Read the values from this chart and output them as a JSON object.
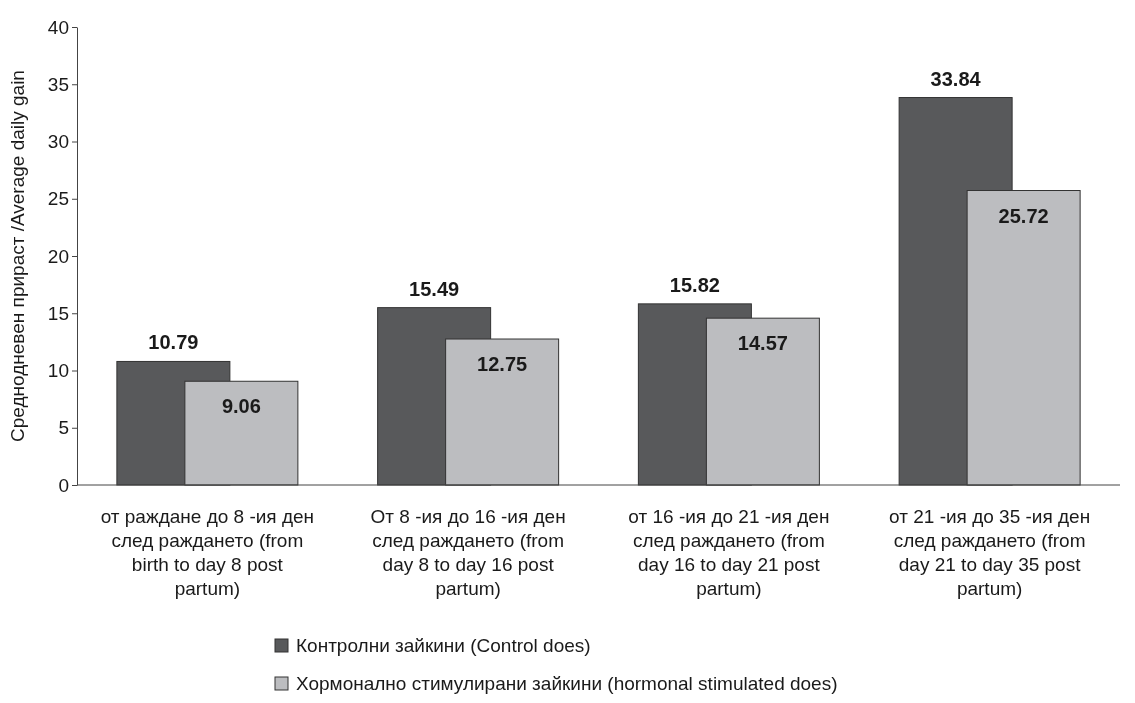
{
  "chart_data": {
    "type": "bar",
    "ylabel": "Среднодневен прираст /Average daily gain",
    "categories": [
      "от раждане до 8 -ия ден след раждането (from birth to day 8 post partum)",
      "От 8 -ия до 16 -ия ден след раждането (from day 8 to day 16 post partum)",
      "от 16 -ия до 21 -ия ден след раждането (from day 16 to day 21 post partum)",
      "от 21 -ия до 35 -ия ден след раждането (from day 21 to day 35 post partum)"
    ],
    "series": [
      {
        "name": "Контролни зайкини (Control does)",
        "color": "#58595b",
        "values": [
          10.79,
          15.49,
          15.82,
          33.84
        ]
      },
      {
        "name": "Хормонално стимулирани зайкини (hormonal stimulated does)",
        "color": "#bcbdc0",
        "values": [
          9.06,
          12.75,
          14.57,
          25.72
        ]
      }
    ],
    "ylim": [
      0,
      40
    ],
    "yticks": [
      0,
      5,
      10,
      15,
      20,
      25,
      30,
      35,
      40
    ],
    "grid": false,
    "data_labels": true,
    "legend": "bottom"
  }
}
